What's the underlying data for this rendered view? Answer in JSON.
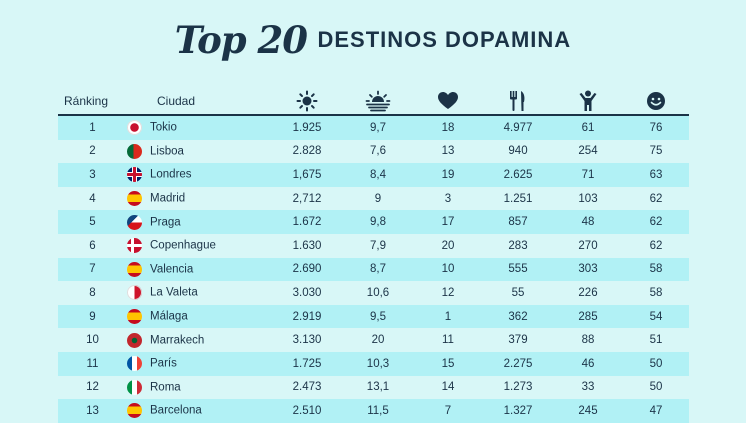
{
  "title": {
    "script": "Top 20",
    "caps": "DESTINOS DOPAMINA"
  },
  "columns": {
    "rank": "Ránking",
    "city": "Ciudad",
    "icons": [
      "sun-icon",
      "sunset-icon",
      "heart-icon",
      "fork-knife-icon",
      "person-icon",
      "smiley-icon"
    ]
  },
  "rows": [
    {
      "rank": "1",
      "flag": "f-jp",
      "flag_icon": "japan-flag-icon",
      "city": "Tokio",
      "c1": "1.925",
      "c2": "9,7",
      "c3": "18",
      "c4": "4.977",
      "c5": "61",
      "c6": "76"
    },
    {
      "rank": "2",
      "flag": "f-pt",
      "flag_icon": "portugal-flag-icon",
      "city": "Lisboa",
      "c1": "2.828",
      "c2": "7,6",
      "c3": "13",
      "c4": "940",
      "c5": "254",
      "c6": "75"
    },
    {
      "rank": "3",
      "flag": "f-gb",
      "flag_icon": "uk-flag-icon",
      "city": "Londres",
      "c1": "1,675",
      "c2": "8,4",
      "c3": "19",
      "c4": "2.625",
      "c5": "71",
      "c6": "63"
    },
    {
      "rank": "4",
      "flag": "f-es",
      "flag_icon": "spain-flag-icon",
      "city": "Madrid",
      "c1": "2,712",
      "c2": "9",
      "c3": "3",
      "c4": "1.251",
      "c5": "103",
      "c6": "62"
    },
    {
      "rank": "5",
      "flag": "f-cz",
      "flag_icon": "czech-flag-icon",
      "city": "Praga",
      "c1": "1.672",
      "c2": "9,8",
      "c3": "17",
      "c4": "857",
      "c5": "48",
      "c6": "62"
    },
    {
      "rank": "6",
      "flag": "f-dk",
      "flag_icon": "denmark-flag-icon",
      "city": "Copenhague",
      "c1": "1.630",
      "c2": "7,9",
      "c3": "20",
      "c4": "283",
      "c5": "270",
      "c6": "62"
    },
    {
      "rank": "7",
      "flag": "f-es",
      "flag_icon": "spain-flag-icon",
      "city": "Valencia",
      "c1": "2.690",
      "c2": "8,7",
      "c3": "10",
      "c4": "555",
      "c5": "303",
      "c6": "58"
    },
    {
      "rank": "8",
      "flag": "f-mt",
      "flag_icon": "malta-flag-icon",
      "city": "La Valeta",
      "c1": "3.030",
      "c2": "10,6",
      "c3": "12",
      "c4": "55",
      "c5": "226",
      "c6": "58"
    },
    {
      "rank": "9",
      "flag": "f-es",
      "flag_icon": "spain-flag-icon",
      "city": "Málaga",
      "c1": "2.919",
      "c2": "9,5",
      "c3": "1",
      "c4": "362",
      "c5": "285",
      "c6": "54"
    },
    {
      "rank": "10",
      "flag": "f-ma",
      "flag_icon": "morocco-flag-icon",
      "city": "Marrakech",
      "c1": "3.130",
      "c2": "20",
      "c3": "11",
      "c4": "379",
      "c5": "88",
      "c6": "51"
    },
    {
      "rank": "11",
      "flag": "f-fr",
      "flag_icon": "france-flag-icon",
      "city": "París",
      "c1": "1.725",
      "c2": "10,3",
      "c3": "15",
      "c4": "2.275",
      "c5": "46",
      "c6": "50"
    },
    {
      "rank": "12",
      "flag": "f-it",
      "flag_icon": "italy-flag-icon",
      "city": "Roma",
      "c1": "2.473",
      "c2": "13,1",
      "c3": "14",
      "c4": "1.273",
      "c5": "33",
      "c6": "50"
    },
    {
      "rank": "13",
      "flag": "f-es",
      "flag_icon": "spain-flag-icon",
      "city": "Barcelona",
      "c1": "2.510",
      "c2": "11,5",
      "c3": "7",
      "c4": "1.327",
      "c5": "245",
      "c6": "47"
    }
  ],
  "colors": {
    "text": "#1b3347",
    "row_striped": "#b1f1f5",
    "background": "#d8f7f7"
  }
}
